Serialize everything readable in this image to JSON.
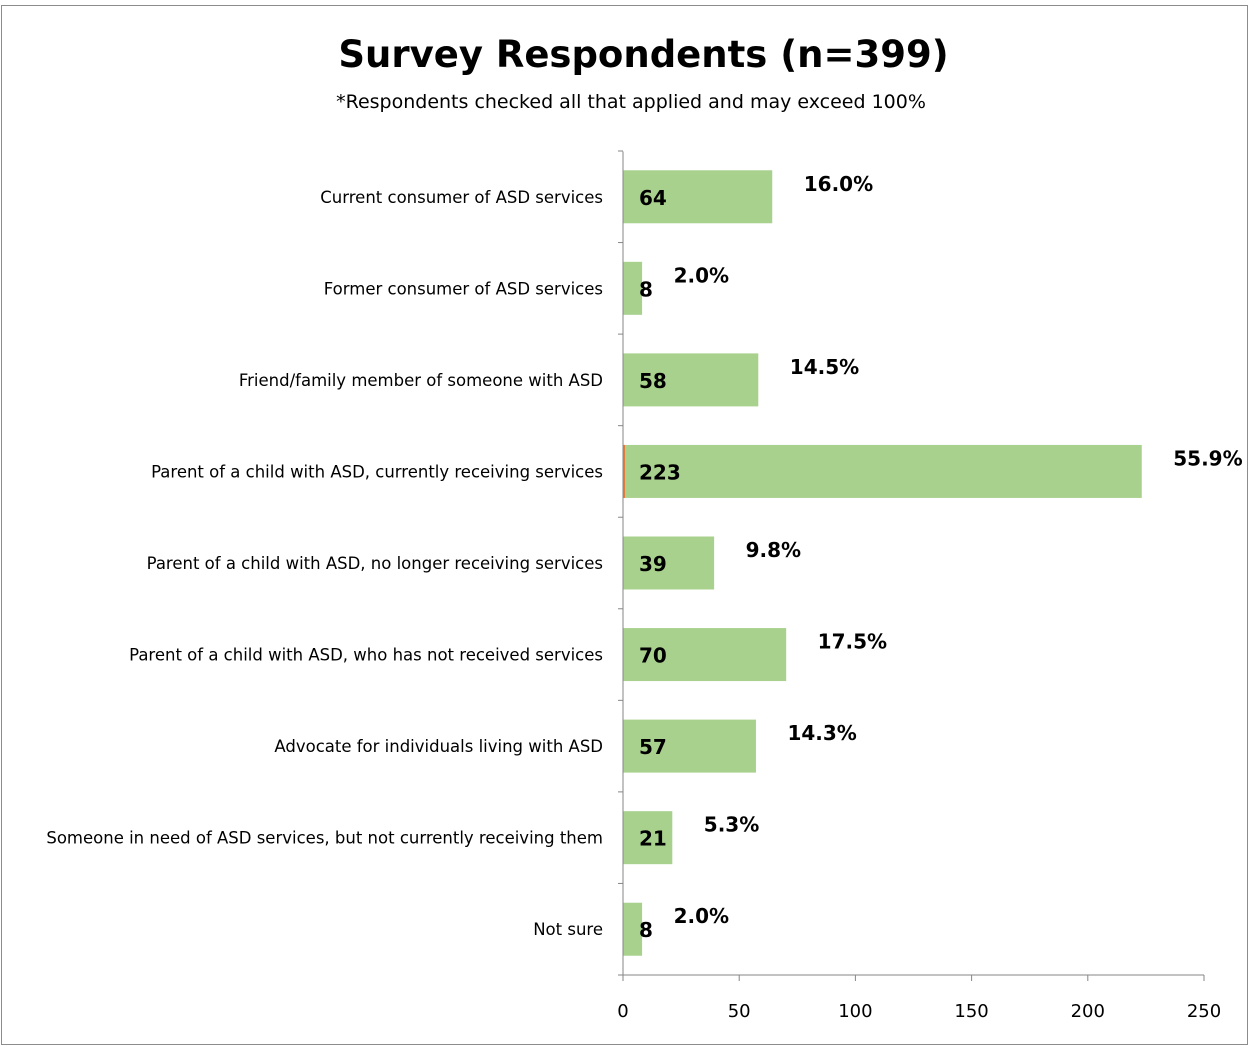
{
  "chart_data": {
    "type": "bar",
    "orientation": "horizontal",
    "title": "Survey Respondents (n=399)",
    "subtitle": "*Respondents checked all that applied and may exceed 100%",
    "categories": [
      "Current consumer of ASD services",
      "Former consumer of ASD services",
      "Friend/family member of someone with ASD",
      "Parent of a child with ASD, currently receiving services",
      "Parent of a child with ASD, no longer receiving services",
      "Parent of a child with ASD, who has not received services",
      "Advocate for individuals living with ASD",
      "Someone in need of ASD services, but not currently receiving them",
      "Not sure"
    ],
    "values": [
      64,
      8,
      58,
      223,
      39,
      70,
      57,
      21,
      8
    ],
    "value_labels": [
      "64",
      "8",
      "58",
      "223",
      "39",
      "70",
      "57",
      "21",
      "8"
    ],
    "percent_labels": [
      "16.0%",
      "2.0%",
      "14.5%",
      "55.9%",
      "9.8%",
      "17.5%",
      "14.3%",
      "5.3%",
      "2.0%"
    ],
    "xlim": [
      0,
      250
    ],
    "xticks": [
      "0",
      "50",
      "100",
      "150",
      "200",
      "250"
    ],
    "xlabel": "",
    "ylabel": "",
    "grid": false,
    "legend": "none",
    "colors": {
      "bar": "#a9d18e",
      "axis": "#868686",
      "border": "#8c8c8c",
      "highlight_edge": "#e07b39"
    }
  }
}
